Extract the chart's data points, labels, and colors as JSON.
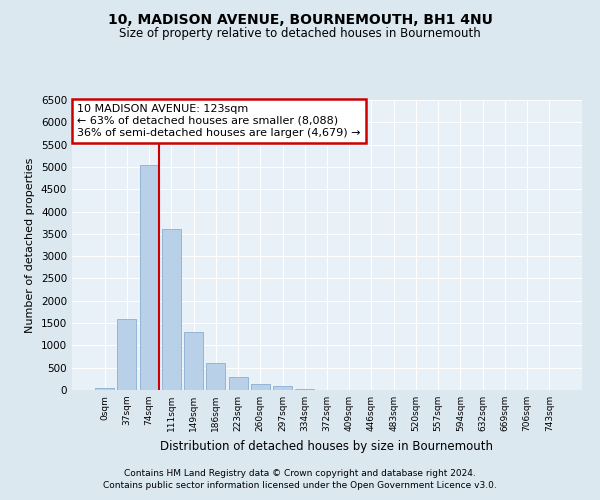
{
  "title": "10, MADISON AVENUE, BOURNEMOUTH, BH1 4NU",
  "subtitle": "Size of property relative to detached houses in Bournemouth",
  "xlabel": "Distribution of detached houses by size in Bournemouth",
  "ylabel": "Number of detached properties",
  "footnote1": "Contains HM Land Registry data © Crown copyright and database right 2024.",
  "footnote2": "Contains public sector information licensed under the Open Government Licence v3.0.",
  "bar_labels": [
    "0sqm",
    "37sqm",
    "74sqm",
    "111sqm",
    "149sqm",
    "186sqm",
    "223sqm",
    "260sqm",
    "297sqm",
    "334sqm",
    "372sqm",
    "409sqm",
    "446sqm",
    "483sqm",
    "520sqm",
    "557sqm",
    "594sqm",
    "632sqm",
    "669sqm",
    "706sqm",
    "743sqm"
  ],
  "bar_values": [
    50,
    1600,
    5050,
    3600,
    1300,
    600,
    300,
    130,
    80,
    30,
    10,
    5,
    3,
    2,
    1,
    0,
    0,
    0,
    0,
    0,
    0
  ],
  "bar_color": "#b8d0e8",
  "bar_edge_color": "#8ab0d0",
  "vline_x": 2.43,
  "vline_color": "#cc0000",
  "annotation_title": "10 MADISON AVENUE: 123sqm",
  "annotation_line1": "← 63% of detached houses are smaller (8,088)",
  "annotation_line2": "36% of semi-detached houses are larger (4,679) →",
  "annotation_box_color": "#cc0000",
  "annotation_bg": "#ffffff",
  "ylim": [
    0,
    6500
  ],
  "yticks": [
    0,
    500,
    1000,
    1500,
    2000,
    2500,
    3000,
    3500,
    4000,
    4500,
    5000,
    5500,
    6000,
    6500
  ],
  "bg_color": "#dce8f0",
  "plot_bg": "#e8f0f8",
  "grid_color": "#ffffff",
  "title_fontsize": 10,
  "subtitle_fontsize": 8.5,
  "ylabel_fontsize": 8,
  "xlabel_fontsize": 8.5,
  "footnote_fontsize": 6.5,
  "annotation_fontsize": 8
}
